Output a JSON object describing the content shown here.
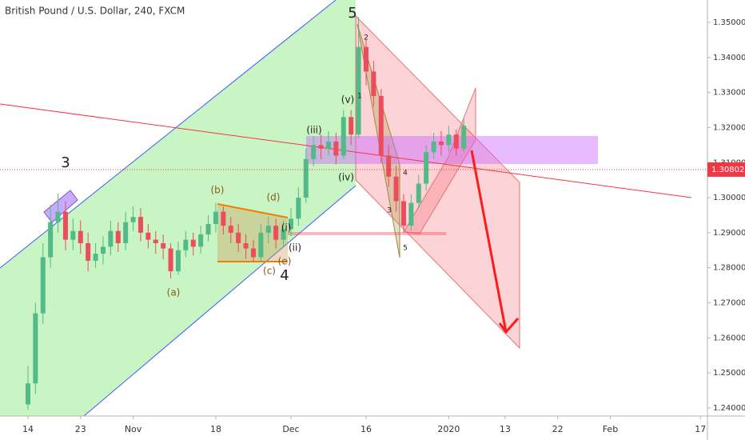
{
  "chart_data": {
    "type": "candlestick",
    "title": "British Pound / U.S. Dollar, 240, FXCM",
    "up_color": "#53b987",
    "down_color": "#eb4d5c",
    "x": [
      0,
      1,
      2,
      3,
      4,
      5,
      6,
      7,
      8,
      9,
      10,
      11,
      12,
      13,
      14,
      15,
      16,
      17,
      18,
      19,
      20,
      21,
      22,
      23,
      24,
      25,
      26,
      27,
      28,
      29,
      30,
      31,
      32,
      33,
      34,
      35,
      36,
      37,
      38,
      39,
      40,
      41,
      42,
      43,
      44,
      45,
      46,
      47,
      48,
      49,
      50,
      51,
      52,
      53,
      54,
      55,
      56,
      57,
      58
    ],
    "open": [
      1.241,
      1.247,
      1.267,
      1.283,
      1.293,
      1.296,
      1.288,
      1.2905,
      1.287,
      1.282,
      1.284,
      1.286,
      1.2905,
      1.287,
      1.293,
      1.2945,
      1.29,
      1.288,
      1.287,
      1.2855,
      1.279,
      1.285,
      1.288,
      1.286,
      1.2895,
      1.2925,
      1.296,
      1.292,
      1.29,
      1.287,
      1.2855,
      1.283,
      1.29,
      1.292,
      1.288,
      1.291,
      1.294,
      1.3,
      1.311,
      1.315,
      1.314,
      1.316,
      1.312,
      1.323,
      1.318,
      1.343,
      1.336,
      1.329,
      1.312,
      1.306,
      1.299,
      1.292,
      1.2985,
      1.304,
      1.313,
      1.316,
      1.315,
      1.318,
      1.314
    ],
    "high": [
      1.252,
      1.27,
      1.287,
      1.298,
      1.3012,
      1.299,
      1.294,
      1.2935,
      1.29,
      1.287,
      1.289,
      1.2935,
      1.293,
      1.296,
      1.2975,
      1.297,
      1.2925,
      1.2905,
      1.2895,
      1.287,
      1.2875,
      1.2905,
      1.29,
      1.292,
      1.295,
      1.2985,
      1.2975,
      1.2945,
      1.2925,
      1.2895,
      1.288,
      1.2925,
      1.2945,
      1.294,
      1.2935,
      1.297,
      1.303,
      1.314,
      1.3175,
      1.318,
      1.319,
      1.3185,
      1.325,
      1.325,
      1.3515,
      1.345,
      1.339,
      1.331,
      1.315,
      1.309,
      1.301,
      1.301,
      1.3065,
      1.315,
      1.3185,
      1.319,
      1.3205,
      1.3195,
      1.3225
    ],
    "low": [
      1.2395,
      1.244,
      1.264,
      1.28,
      1.29,
      1.285,
      1.285,
      1.284,
      1.279,
      1.28,
      1.281,
      1.2835,
      1.2845,
      1.285,
      1.2905,
      1.2875,
      1.2855,
      1.284,
      1.2825,
      1.277,
      1.278,
      1.283,
      1.2835,
      1.284,
      1.2875,
      1.29,
      1.2895,
      1.287,
      1.2845,
      1.2825,
      1.2815,
      1.282,
      1.287,
      1.2855,
      1.286,
      1.289,
      1.292,
      1.2985,
      1.309,
      1.311,
      1.312,
      1.3095,
      1.311,
      1.315,
      1.317,
      1.332,
      1.326,
      1.31,
      1.303,
      1.296,
      1.29,
      1.2905,
      1.297,
      1.302,
      1.311,
      1.312,
      1.313,
      1.312,
      1.313
    ],
    "close": [
      1.247,
      1.267,
      1.283,
      1.293,
      1.296,
      1.288,
      1.2905,
      1.287,
      1.282,
      1.284,
      1.286,
      1.2905,
      1.287,
      1.293,
      1.2945,
      1.29,
      1.288,
      1.287,
      1.2855,
      1.279,
      1.285,
      1.288,
      1.286,
      1.2895,
      1.2925,
      1.296,
      1.292,
      1.29,
      1.287,
      1.2855,
      1.283,
      1.29,
      1.292,
      1.288,
      1.291,
      1.294,
      1.3,
      1.311,
      1.315,
      1.314,
      1.316,
      1.312,
      1.323,
      1.318,
      1.343,
      1.336,
      1.329,
      1.312,
      1.306,
      1.299,
      1.292,
      1.2985,
      1.304,
      1.313,
      1.316,
      1.315,
      1.318,
      1.314,
      1.3205
    ],
    "last_price": 1.30802,
    "last_price_color": "#f23645",
    "xlim": [
      -3.72,
      90.43
    ],
    "xticks": [
      {
        "value": 0,
        "label": "14"
      },
      {
        "value": 7,
        "label": "23"
      },
      {
        "value": 14,
        "label": "Nov"
      },
      {
        "value": 25,
        "label": "18"
      },
      {
        "value": 35,
        "label": "Dec"
      },
      {
        "value": 45,
        "label": "16"
      },
      {
        "value": 56,
        "label": "2020"
      },
      {
        "value": 63.5,
        "label": "13"
      },
      {
        "value": 70.5,
        "label": "22"
      },
      {
        "value": 77.5,
        "label": "Feb"
      },
      {
        "value": 89.5,
        "label": "17"
      }
    ],
    "ylim": [
      1.2377,
      1.3564
    ],
    "yticks": [
      {
        "value": 1.24,
        "label": "1.24000"
      },
      {
        "value": 1.25,
        "label": "1.25000"
      },
      {
        "value": 1.26,
        "label": "1.26000"
      },
      {
        "value": 1.27,
        "label": "1.27000"
      },
      {
        "value": 1.28,
        "label": "1.28000"
      },
      {
        "value": 1.29,
        "label": "1.29000"
      },
      {
        "value": 1.3,
        "label": "1.30000"
      },
      {
        "value": 1.31,
        "label": "1.31000"
      },
      {
        "value": 1.32,
        "label": "1.32000"
      },
      {
        "value": 1.33,
        "label": "1.33000"
      },
      {
        "value": 1.34,
        "label": "1.34000"
      },
      {
        "value": 1.35,
        "label": "1.35000"
      }
    ],
    "annotations": [
      "3",
      "5",
      "4",
      "(a)",
      "(b)",
      "(c)",
      "(d)",
      "(e)",
      "(i)",
      "(ii)",
      "(iii)",
      "(iv)",
      "(v)",
      "1",
      "2",
      "3",
      "4",
      "5"
    ]
  }
}
